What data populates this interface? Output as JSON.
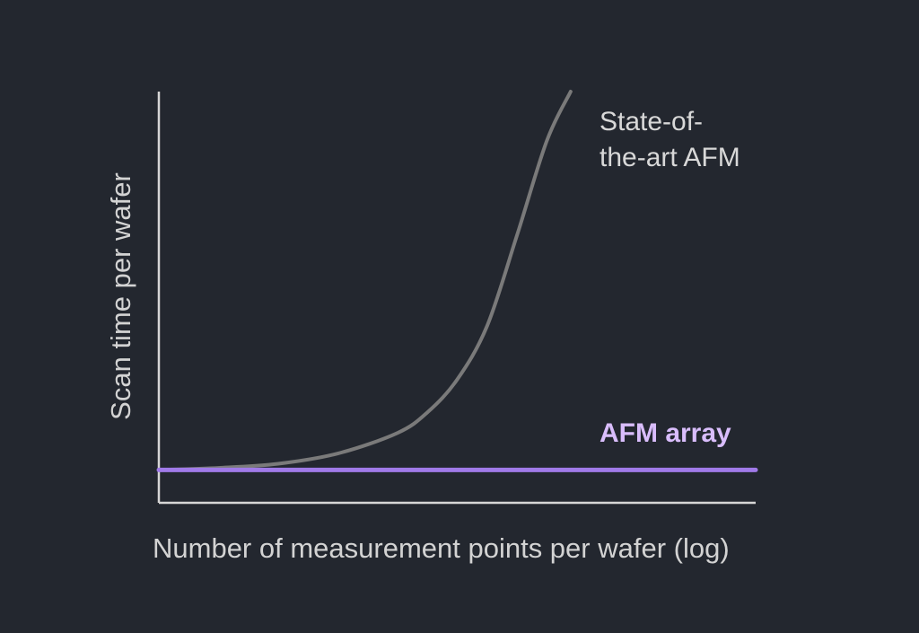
{
  "chart_data": {
    "type": "line",
    "xlabel": "Number of measurement points per wafer (log)",
    "ylabel": "Scan time per wafer",
    "x_scale": "log",
    "xlim": [
      0,
      1
    ],
    "ylim": [
      0,
      1
    ],
    "grid": false,
    "series": [
      {
        "name": "State-of-the-art AFM",
        "label_lines": [
          "State-of-",
          "the-art AFM"
        ],
        "color": "#7a7a7a",
        "label_color": "#d8d8d8",
        "points": [
          [
            0.0,
            0.08
          ],
          [
            0.1,
            0.085
          ],
          [
            0.2,
            0.095
          ],
          [
            0.3,
            0.12
          ],
          [
            0.4,
            0.17
          ],
          [
            0.45,
            0.22
          ],
          [
            0.5,
            0.3
          ],
          [
            0.55,
            0.43
          ],
          [
            0.6,
            0.65
          ],
          [
            0.65,
            0.88
          ],
          [
            0.69,
            1.0
          ]
        ]
      },
      {
        "name": "AFM array",
        "label_lines": [
          "AFM array"
        ],
        "color": "#a07ae8",
        "label_color": "#d9bdfc",
        "points": [
          [
            0.0,
            0.08
          ],
          [
            1.0,
            0.08
          ]
        ]
      }
    ]
  }
}
